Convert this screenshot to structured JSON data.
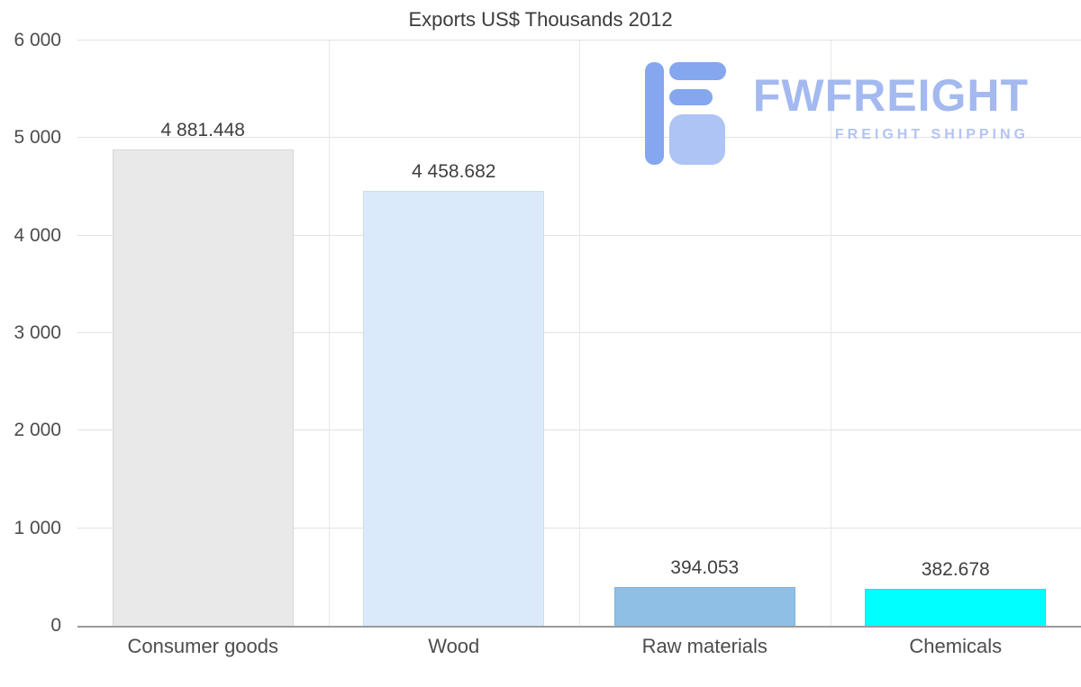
{
  "chart_data": {
    "type": "bar",
    "title": "Exports US$ Thousands 2012",
    "categories": [
      "Consumer goods",
      "Wood",
      "Raw materials",
      "Chemicals"
    ],
    "values": [
      4881.448,
      4458.682,
      394.053,
      382.678
    ],
    "value_labels": [
      "4 881.448",
      "4 458.682",
      "394.053",
      "382.678"
    ],
    "bar_colors": [
      "#e9e9e9",
      "#daeafa",
      "#90bfe6",
      "#00ffff"
    ],
    "bar_border_colors": [
      "#d7d7d7",
      "#c8dff3",
      "#7fb1dc",
      "#00e9e9"
    ],
    "xlabel": "",
    "ylabel": "",
    "ylim": [
      0,
      6000
    ],
    "yticks": [
      0,
      1000,
      2000,
      3000,
      4000,
      5000,
      6000
    ],
    "ytick_labels": [
      "0",
      "1 000",
      "2 000",
      "3 000",
      "4 000",
      "5 000",
      "6 000"
    ],
    "grid": "horizontal gridlines plus vertical category separators",
    "legend": "none"
  },
  "watermark": {
    "brand": "FWFREIGHT",
    "tagline": "FREIGHT SHIPPING",
    "icon": "fw-logo-icon",
    "brand_color": "#a3b9f0",
    "icon_color": "#84a7ef",
    "icon_color_light": "#adc4f5"
  }
}
